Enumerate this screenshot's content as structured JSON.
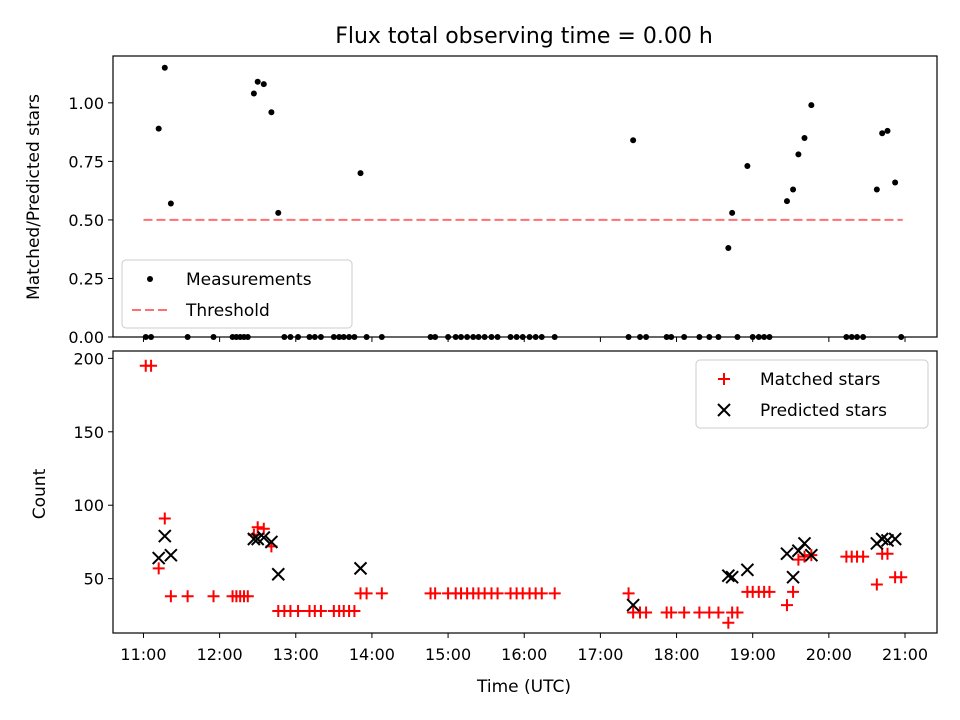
{
  "chart_data": [
    {
      "type": "scatter",
      "title": "Flux total observing time = 0.00 h",
      "xlabel": "",
      "ylabel": "Matched/Predicted stars",
      "xlim": [
        10.6,
        21.42
      ],
      "ylim": [
        0,
        1.2
      ],
      "yticks": [
        0.0,
        0.25,
        0.5,
        0.75,
        1.0
      ],
      "ytick_labels": [
        "0.00",
        "0.25",
        "0.50",
        "0.75",
        "1.00"
      ],
      "legend": [
        "Measurements",
        "Threshold"
      ],
      "legend_position": "lower-left",
      "threshold": {
        "name": "Threshold",
        "value": 0.5,
        "x_range": [
          11.0,
          20.97
        ],
        "color": "#ff7070"
      },
      "series": [
        {
          "name": "Measurements",
          "marker": "dot",
          "color": "#000000",
          "x": [
            11.03,
            11.1,
            11.2,
            11.28,
            11.36,
            11.58,
            11.92,
            12.17,
            12.22,
            12.27,
            12.32,
            12.37,
            12.45,
            12.5,
            12.58,
            12.68,
            12.77,
            12.85,
            12.93,
            13.03,
            13.18,
            13.25,
            13.33,
            13.5,
            13.57,
            13.63,
            13.7,
            13.77,
            13.85,
            13.93,
            14.13,
            14.77,
            14.83,
            15.0,
            15.1,
            15.17,
            15.25,
            15.33,
            15.4,
            15.48,
            15.57,
            15.65,
            15.82,
            15.9,
            15.98,
            16.07,
            16.15,
            16.23,
            16.4,
            17.37,
            17.43,
            17.52,
            17.6,
            17.87,
            17.93,
            18.1,
            18.3,
            18.43,
            18.55,
            18.68,
            18.73,
            18.8,
            18.93,
            19.0,
            19.08,
            19.15,
            19.22,
            19.45,
            19.53,
            19.6,
            19.68,
            19.77,
            20.23,
            20.3,
            20.37,
            20.45,
            20.63,
            20.7,
            20.77,
            20.87,
            20.95
          ],
          "y": [
            0.0,
            0.0,
            0.89,
            1.15,
            0.57,
            0.0,
            0.0,
            0.0,
            0.0,
            0.0,
            0.0,
            0.0,
            1.04,
            1.09,
            1.08,
            0.96,
            0.53,
            0.0,
            0.0,
            0.0,
            0.0,
            0.0,
            0.0,
            0.0,
            0.0,
            0.0,
            0.0,
            0.0,
            0.7,
            0.0,
            0.0,
            0.0,
            0.0,
            0.0,
            0.0,
            0.0,
            0.0,
            0.0,
            0.0,
            0.0,
            0.0,
            0.0,
            0.0,
            0.0,
            0.0,
            0.0,
            0.0,
            0.0,
            0.0,
            0.0,
            0.84,
            0.0,
            0.0,
            0.0,
            0.0,
            0.0,
            0.0,
            0.0,
            0.0,
            0.38,
            0.53,
            0.0,
            0.73,
            0.0,
            0.0,
            0.0,
            0.0,
            0.58,
            0.63,
            0.78,
            0.85,
            0.99,
            0.0,
            0.0,
            0.0,
            0.0,
            0.63,
            0.87,
            0.88,
            0.66,
            0.0
          ]
        }
      ]
    },
    {
      "type": "scatter",
      "title": "",
      "xlabel": "Time (UTC)",
      "ylabel": "Count",
      "xlim": [
        10.6,
        21.42
      ],
      "ylim": [
        13,
        205
      ],
      "yticks": [
        50,
        100,
        150,
        200
      ],
      "ytick_labels": [
        "50",
        "100",
        "150",
        "200"
      ],
      "xticks": [
        11,
        12,
        13,
        14,
        15,
        16,
        17,
        18,
        19,
        20,
        21
      ],
      "xtick_labels": [
        "11:00",
        "12:00",
        "13:00",
        "14:00",
        "15:00",
        "16:00",
        "17:00",
        "18:00",
        "19:00",
        "20:00",
        "21:00"
      ],
      "legend": [
        "Matched stars",
        "Predicted stars"
      ],
      "legend_position": "top-right",
      "series": [
        {
          "name": "Matched stars",
          "marker": "plus",
          "color": "#ff0000",
          "x": [
            11.03,
            11.1,
            11.2,
            11.28,
            11.36,
            11.58,
            11.92,
            12.17,
            12.22,
            12.27,
            12.32,
            12.37,
            12.45,
            12.5,
            12.58,
            12.68,
            12.77,
            12.85,
            12.93,
            13.03,
            13.18,
            13.25,
            13.33,
            13.5,
            13.57,
            13.63,
            13.7,
            13.77,
            13.85,
            13.93,
            14.13,
            14.77,
            14.83,
            15.0,
            15.1,
            15.17,
            15.25,
            15.33,
            15.4,
            15.48,
            15.57,
            15.65,
            15.82,
            15.9,
            15.98,
            16.07,
            16.15,
            16.23,
            16.4,
            17.37,
            17.43,
            17.52,
            17.6,
            17.87,
            17.93,
            18.1,
            18.3,
            18.43,
            18.55,
            18.68,
            18.73,
            18.8,
            18.93,
            19.0,
            19.08,
            19.15,
            19.22,
            19.45,
            19.53,
            19.6,
            19.68,
            19.77,
            20.23,
            20.3,
            20.37,
            20.45,
            20.63,
            20.7,
            20.77,
            20.87,
            20.95
          ],
          "y": [
            195,
            195,
            57,
            91,
            38,
            38,
            38,
            38,
            38,
            38,
            38,
            38,
            80,
            85,
            84,
            72,
            28,
            28,
            28,
            28,
            28,
            28,
            28,
            28,
            28,
            28,
            28,
            28,
            40,
            40,
            40,
            40,
            40,
            40,
            40,
            40,
            40,
            40,
            40,
            40,
            40,
            40,
            40,
            40,
            40,
            40,
            40,
            40,
            40,
            40,
            27,
            27,
            27,
            27,
            27,
            27,
            27,
            27,
            27,
            20,
            27,
            27,
            41,
            41,
            41,
            41,
            41,
            32,
            41,
            63,
            65,
            66,
            65,
            65,
            65,
            65,
            46,
            67,
            67,
            51,
            51
          ]
        },
        {
          "name": "Predicted stars",
          "marker": "x",
          "color": "#000000",
          "x": [
            11.2,
            11.28,
            11.36,
            12.45,
            12.5,
            12.58,
            12.68,
            12.77,
            13.85,
            17.43,
            18.68,
            18.73,
            18.93,
            19.45,
            19.53,
            19.6,
            19.68,
            19.77,
            20.63,
            20.7,
            20.77,
            20.87
          ],
          "y": [
            64,
            79,
            66,
            77,
            77,
            78,
            75,
            53,
            57,
            32,
            52,
            51,
            56,
            67,
            51,
            69,
            74,
            66,
            74,
            77,
            76,
            77
          ]
        }
      ]
    }
  ]
}
